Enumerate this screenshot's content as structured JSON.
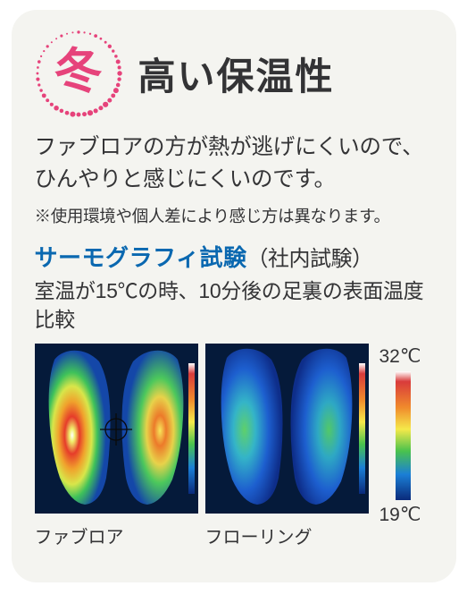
{
  "header": {
    "season_kanji": "冬",
    "season_color": "#e6437b",
    "title": "高い保温性"
  },
  "description": "ファブロアの方が熱が逃げにくいので、ひんやりと感じにくいのです。",
  "disclaimer": "※使用環境や個人差により感じ方は異なります。",
  "section": {
    "title": "サーモグラフィ試験",
    "title_suffix": "（社内試験）",
    "title_color": "#0a68b0",
    "condition": "室温が15℃の時、10分後の足裏の表面温度比較"
  },
  "images": {
    "left_caption": "ファブロア",
    "right_caption": "フローリング"
  },
  "scale": {
    "max_label": "32℃",
    "min_label": "19℃",
    "gradient_stops": [
      {
        "offset": 0,
        "color": "#ffffff"
      },
      {
        "offset": 0.08,
        "color": "#d93b3b"
      },
      {
        "offset": 0.28,
        "color": "#f08a2c"
      },
      {
        "offset": 0.45,
        "color": "#f5e94a"
      },
      {
        "offset": 0.62,
        "color": "#49c24d"
      },
      {
        "offset": 0.8,
        "color": "#1b7fd6"
      },
      {
        "offset": 1.0,
        "color": "#0a2a7a"
      }
    ]
  },
  "card_bg": "#f4f4f0",
  "thermo_bg": "#051a3a"
}
